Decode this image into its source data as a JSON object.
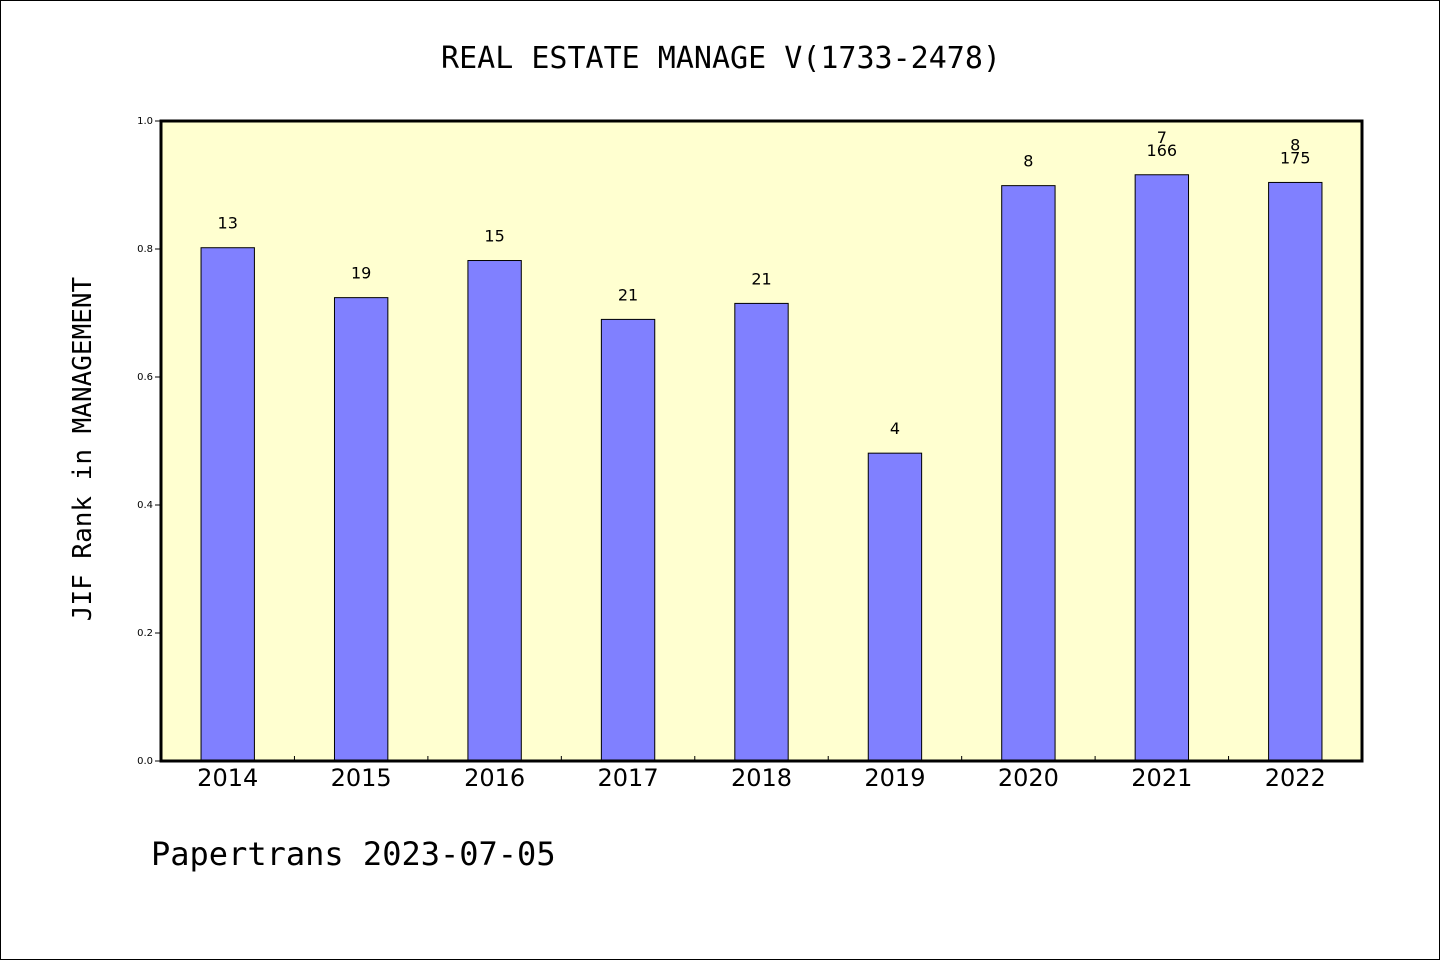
{
  "chart_data": {
    "type": "bar",
    "title": "REAL ESTATE MANAGE V(1733-2478)",
    "xlabel": "",
    "ylabel": "JIF Rank in MANAGEMENT",
    "ylim": [
      0.0,
      1.0
    ],
    "yticks": [
      "0.0",
      "0.2",
      "0.4",
      "0.6",
      "0.8",
      "1.0"
    ],
    "categories": [
      "2014",
      "2015",
      "2016",
      "2017",
      "2018",
      "2019",
      "2020",
      "2021",
      "2022"
    ],
    "values": [
      0.802,
      0.724,
      0.782,
      0.69,
      0.715,
      0.481,
      0.899,
      0.916,
      0.904
    ],
    "bar_labels": [
      [
        "13"
      ],
      [
        "19"
      ],
      [
        "15"
      ],
      [
        "21"
      ],
      [
        "21"
      ],
      [
        "4"
      ],
      [
        "8"
      ],
      [
        "7",
        "166"
      ],
      [
        "8",
        "175"
      ]
    ],
    "grid": false,
    "legend": "none",
    "colors": {
      "bar_fill": "#8080ff",
      "plot_background": "#ffffd0",
      "bar_stroke": "#000000"
    }
  },
  "footer": {
    "text": "Papertrans 2023-07-05"
  }
}
